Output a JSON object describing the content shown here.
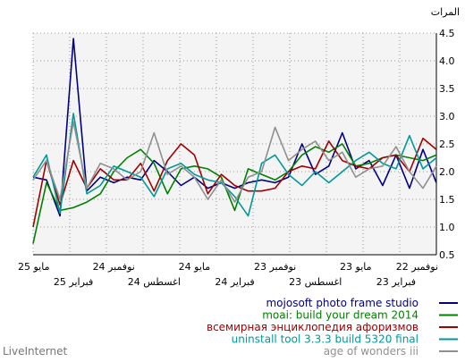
{
  "brand": "LiveInternet",
  "chart_data": {
    "type": "line",
    "ylabel": "المرات",
    "ylim": [
      0.5,
      4.5
    ],
    "yticks": [
      "4.5",
      "4.0",
      "3.5",
      "3.0",
      "2.5",
      "2.0",
      "1.5",
      "1.0",
      "0.5"
    ],
    "x_ticks_row1": [
      "مايو 25",
      "نوفمبر 24",
      "مايو 24",
      "نوفمبر 23",
      "مايو 23",
      "نوفمبر 22"
    ],
    "x_ticks_row2": [
      "فبراير 25",
      "اغسطس 24",
      "فبراير 24",
      "اغسطس 23",
      "فبراير 23"
    ],
    "grid": true,
    "legend_position": "bottom-right",
    "series": [
      {
        "name": "mojosoft photo frame studio",
        "color": "#000080",
        "values": [
          1.9,
          1.85,
          1.2,
          4.4,
          1.65,
          1.9,
          1.8,
          1.9,
          1.85,
          2.2,
          2.0,
          1.75,
          1.9,
          1.7,
          1.8,
          1.7,
          1.8,
          1.85,
          1.8,
          1.9,
          2.5,
          1.95,
          2.1,
          2.7,
          2.05,
          2.2,
          1.75,
          2.3,
          1.7,
          2.4,
          1.8
        ]
      },
      {
        "name": "moai: build your dream 2014",
        "color": "#008000",
        "values": [
          0.7,
          1.8,
          1.3,
          1.35,
          1.45,
          1.6,
          2.0,
          2.25,
          2.4,
          2.15,
          1.6,
          2.05,
          2.1,
          2.05,
          1.9,
          1.3,
          2.05,
          1.95,
          1.85,
          2.0,
          2.3,
          2.45,
          2.35,
          2.5,
          2.1,
          2.15,
          2.25,
          2.3,
          2.25,
          2.2,
          2.3
        ]
      },
      {
        "name": "всемирная энциклопедия афоризмов",
        "color": "#a00000",
        "values": [
          1.0,
          2.2,
          1.4,
          2.2,
          1.7,
          2.05,
          1.85,
          1.85,
          2.15,
          1.65,
          2.2,
          2.5,
          2.3,
          1.6,
          1.95,
          1.75,
          1.65,
          1.65,
          1.7,
          2.0,
          2.1,
          2.05,
          2.55,
          2.2,
          2.1,
          2.05,
          2.25,
          2.3,
          2.0,
          2.6,
          2.4
        ]
      },
      {
        "name": "uninstall tool 3.3.3 build 5320 final",
        "color": "#009999",
        "values": [
          1.9,
          2.3,
          1.25,
          3.05,
          1.6,
          1.75,
          2.1,
          2.0,
          1.9,
          1.55,
          2.05,
          2.15,
          1.95,
          1.85,
          1.8,
          1.55,
          1.2,
          2.15,
          2.3,
          1.95,
          1.75,
          2.0,
          1.8,
          2.0,
          2.2,
          2.35,
          2.15,
          2.05,
          2.65,
          2.05,
          2.25
        ]
      },
      {
        "name": "age of wonders iii",
        "color": "#909090",
        "values": [
          1.85,
          2.2,
          1.5,
          2.9,
          1.7,
          2.15,
          2.05,
          1.85,
          2.0,
          2.7,
          1.95,
          2.1,
          1.9,
          1.5,
          1.85,
          1.45,
          1.9,
          2.0,
          2.8,
          2.2,
          2.4,
          2.55,
          2.2,
          2.35,
          1.9,
          2.05,
          2.1,
          2.45,
          2.0,
          1.7,
          2.1
        ]
      }
    ]
  }
}
